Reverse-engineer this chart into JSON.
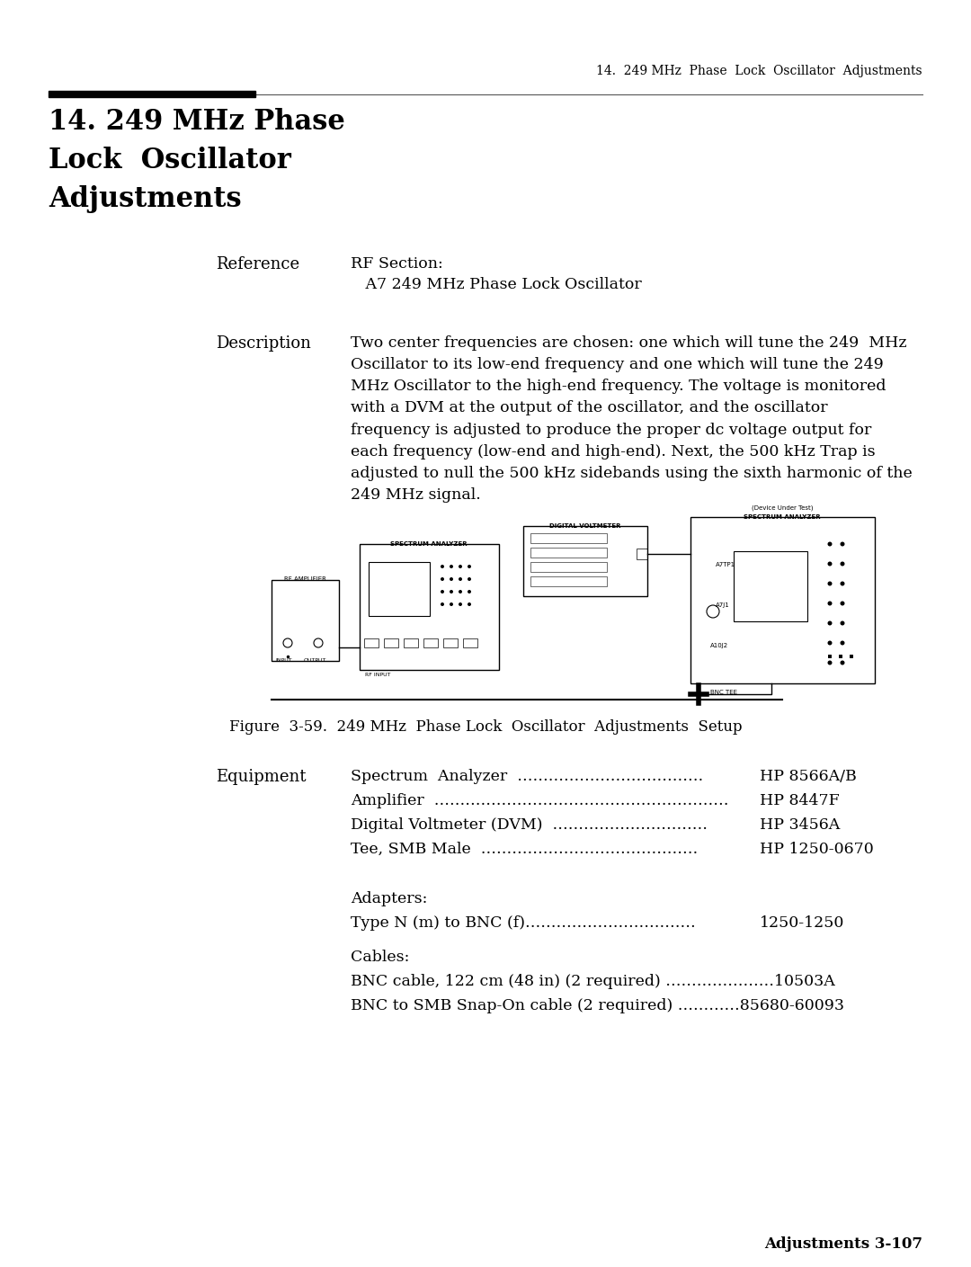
{
  "page_title": "14.  249 MHz  Phase  Lock  Oscillator  Adjustments",
  "section_title_line1": "14. 249 MHz Phase",
  "section_title_line2": "Lock  Oscillator",
  "section_title_line3": "Adjustments",
  "reference_label": "Reference",
  "reference_text_line1": "RF Section:",
  "reference_text_line2": "   A7 249 MHz Phase Lock Oscillator",
  "description_label": "Description",
  "description_text": "Two center frequencies are chosen: one which will tune the 249  MHz\nOscillator to its low-end frequency and one which will tune the 249\nMHz Oscillator to the high-end frequency. The voltage is monitored\nwith a DVM at the output of the oscillator, and the oscillator\nfrequency is adjusted to produce the proper dc voltage output for\neach frequency (low-end and high-end). Next, the 500 kHz Trap is\nadjusted to null the 500 kHz sidebands using the sixth harmonic of the\n249 MHz signal.",
  "figure_caption": "Figure  3-59.  249 MHz  Phase Lock  Oscillator  Adjustments  Setup",
  "equipment_label": "Equipment",
  "equipment_items": [
    [
      "Spectrum  Analyzer  ………………………………",
      "HP 8566A/B"
    ],
    [
      "Amplifier  …………………………………………………",
      "HP 8447F"
    ],
    [
      "Digital Voltmeter (DVM)  …………………………",
      "HP 3456A"
    ],
    [
      "Tee, SMB Male  ……………………………………",
      "HP 1250-0670"
    ]
  ],
  "adapters_label": "Adapters:",
  "adapters_items": [
    [
      "Type N (m) to BNC (f)……………………………",
      "1250-1250"
    ]
  ],
  "cables_label": "Cables:",
  "cables_items": [
    "BNC cable, 122 cm (48 in) (2 required) …………………10503A",
    "BNC to SMB Snap-On cable (2 required) …………85680-60093"
  ],
  "footer_text": "Adjustments 3-107",
  "bg_color": "#ffffff",
  "text_color": "#000000"
}
